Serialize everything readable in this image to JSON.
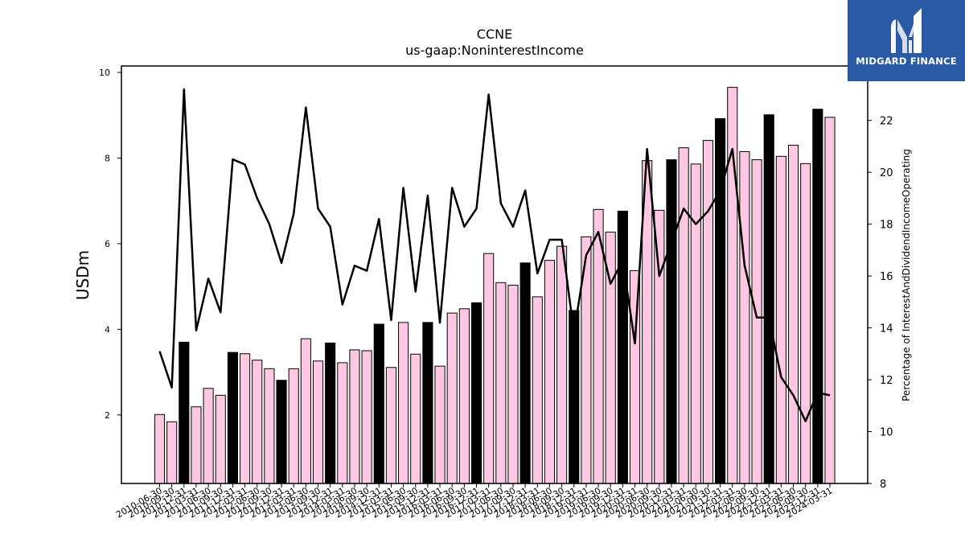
{
  "logo": {
    "text": "MIDGARD FINANCE",
    "icon": "midgard-m-logo-icon",
    "background": "#2a5aa6"
  },
  "chart_data": {
    "type": "bar",
    "title": "CCNE",
    "subtitle": "us-gaap:NoninterestIncome",
    "ylabel": "USDm",
    "y2label": "Percentage of InterestAndDividendIncomeOperating",
    "ylim": [
      0.4,
      10.15
    ],
    "y2lim": [
      8,
      24.1
    ],
    "yticks": [
      2,
      4,
      6,
      8,
      10
    ],
    "y2ticks": [
      8,
      10,
      12,
      14,
      16,
      18,
      20,
      22
    ],
    "bar_colors": {
      "quarter": "#ffc8e2",
      "q4": "#000000",
      "edge": "#000000"
    },
    "line_color": "#000000",
    "grid": false,
    "categories": [
      "2010-06-30",
      "2010-09-30",
      "2010-12-31",
      "2011-03-31",
      "2011-06-30",
      "2011-09-30",
      "2011-12-31",
      "2012-03-31",
      "2012-06-30",
      "2012-09-30",
      "2012-12-31",
      "2013-03-31",
      "2013-06-30",
      "2013-09-30",
      "2013-12-31",
      "2014-03-31",
      "2014-06-30",
      "2014-09-30",
      "2014-12-31",
      "2015-03-31",
      "2015-06-30",
      "2015-09-30",
      "2015-12-31",
      "2016-03-31",
      "2016-06-30",
      "2016-09-30",
      "2016-12-31",
      "2017-03-31",
      "2017-06-30",
      "2017-09-30",
      "2017-12-31",
      "2018-03-31",
      "2018-06-30",
      "2018-09-30",
      "2018-12-31",
      "2019-03-31",
      "2019-06-30",
      "2019-09-30",
      "2019-12-31",
      "2020-03-31",
      "2020-06-30",
      "2020-09-30",
      "2020-12-31",
      "2021-03-31",
      "2021-06-30",
      "2021-09-30",
      "2021-12-31",
      "2022-03-31",
      "2022-06-30",
      "2022-09-30",
      "2022-12-31",
      "2023-03-31",
      "2023-06-30",
      "2023-09-30",
      "2023-12-31",
      "2024-03-31"
    ],
    "x_tick_labels": [
      "2010-06-30",
      "2010-09-30",
      "2010-12-31",
      "2011-03-31",
      "2011-06-30",
      "2011-09-30",
      "2011-12-31",
      "2012-03-31",
      "2012-06-30",
      "2012-09-30",
      "2012-12-31",
      "2013-03-31",
      "2013-06-30",
      "2013-09-30",
      "2013-12-31",
      "2014-03-31",
      "2014-06-30",
      "2014-09-30",
      "2014-12-31",
      "2015-03-31",
      "2015-06-30",
      "2015-09-30",
      "2015-12-31",
      "2016-03-31",
      "2016-06-30",
      "2016-09-30",
      "2016-12-31",
      "2017-03-31",
      "2017-06-30",
      "2017-09-30",
      "2017-12-31",
      "2018-03-31",
      "2018-06-30",
      "2018-09-30",
      "2018-12-31",
      "2019-03-31",
      "2019-06-30",
      "2019-09-30",
      "2019-12-31",
      "2020-03-31",
      "2020-06-30",
      "2020-09-30",
      "2020-12-31",
      "2021-03-31",
      "2021-06-30",
      "2021-09-30",
      "2021-12-31",
      "2022-03-31",
      "2022-06-30",
      "2022-09-30",
      "2022-12-31",
      "2023-03-31",
      "2023-06-30",
      "2023-09-30",
      "2023-12-31",
      "2024-03-31"
    ],
    "series": [
      {
        "axis": "left",
        "type": "bar",
        "values": [
          2.01,
          1.84,
          3.7,
          2.19,
          2.62,
          2.46,
          3.46,
          3.43,
          3.28,
          3.08,
          2.81,
          3.08,
          3.78,
          3.26,
          3.68,
          3.22,
          3.52,
          3.5,
          4.12,
          3.11,
          4.16,
          3.42,
          4.16,
          3.14,
          4.38,
          4.48,
          4.62,
          5.77,
          5.09,
          5.03,
          5.55,
          4.76,
          5.61,
          5.94,
          4.44,
          6.16,
          6.8,
          6.27,
          6.76,
          5.37,
          7.94,
          6.78,
          7.96,
          8.24,
          7.86,
          8.41,
          8.92,
          9.65,
          8.15,
          7.96,
          9.01,
          8.04,
          8.3,
          7.87,
          9.14,
          8.95
        ]
      },
      {
        "axis": "right",
        "type": "line",
        "values": [
          13.1,
          11.7,
          23.2,
          13.9,
          15.9,
          14.6,
          20.5,
          20.3,
          19.0,
          18.0,
          16.5,
          18.4,
          22.5,
          18.6,
          17.9,
          14.9,
          16.4,
          16.2,
          18.2,
          14.3,
          19.4,
          15.4,
          19.1,
          14.2,
          19.4,
          17.9,
          18.6,
          23.0,
          18.8,
          17.9,
          19.3,
          16.1,
          17.4,
          17.4,
          13.8,
          16.8,
          17.7,
          15.7,
          16.6,
          13.4,
          20.9,
          16.0,
          17.3,
          18.6,
          18.0,
          18.5,
          19.3,
          20.9,
          16.4,
          14.4,
          14.4,
          12.1,
          11.4,
          10.4,
          11.5,
          11.4
        ]
      }
    ]
  }
}
